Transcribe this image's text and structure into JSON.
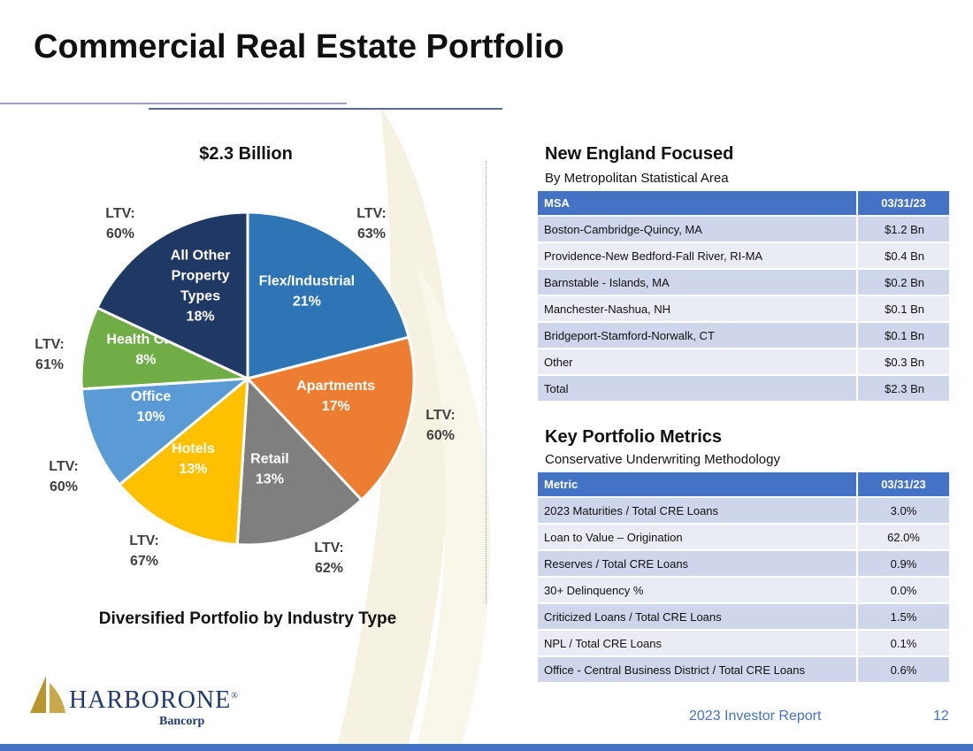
{
  "title": "Commercial Real Estate Portfolio",
  "chart_data": {
    "type": "pie",
    "title": "$2.3 Billion",
    "caption": "Diversified Portfolio by Industry Type",
    "slices": [
      {
        "label": [
          "Flex/Industrial"
        ],
        "pct_text": "21%",
        "value": 21,
        "ltv": "LTV:",
        "ltv_val": "63%",
        "color": "#2e75b6"
      },
      {
        "label": [
          "Apartments"
        ],
        "pct_text": "17%",
        "value": 17,
        "ltv": "LTV:",
        "ltv_val": "60%",
        "color": "#ed7d31"
      },
      {
        "label": [
          "Retail"
        ],
        "pct_text": "13%",
        "value": 13,
        "ltv": "LTV:",
        "ltv_val": "62%",
        "color": "#7f7f7f"
      },
      {
        "label": [
          "Hotels"
        ],
        "pct_text": "13%",
        "value": 13,
        "ltv": "LTV:",
        "ltv_val": "67%",
        "color": "#ffc000"
      },
      {
        "label": [
          "Office"
        ],
        "pct_text": "10%",
        "value": 10,
        "ltv": "LTV:",
        "ltv_val": "60%",
        "color": "#5b9bd5"
      },
      {
        "label": [
          "Health Care"
        ],
        "pct_text": "8%",
        "value": 8,
        "ltv": "LTV:",
        "ltv_val": "61%",
        "color": "#70ad47"
      },
      {
        "label": [
          "All Other",
          "Property",
          "Types"
        ],
        "pct_text": "18%",
        "value": 18,
        "ltv": "LTV:",
        "ltv_val": "60%",
        "color": "#203864"
      }
    ]
  },
  "msa": {
    "title": "New England Focused",
    "subtitle": "By Metropolitan Statistical Area",
    "headers": [
      "MSA",
      "03/31/23"
    ],
    "rows": [
      [
        "Boston-Cambridge-Quincy, MA",
        "$1.2 Bn"
      ],
      [
        "Providence-New Bedford-Fall River, RI-MA",
        "$0.4 Bn"
      ],
      [
        "Barnstable - Islands, MA",
        "$0.2 Bn"
      ],
      [
        "Manchester-Nashua, NH",
        "$0.1 Bn"
      ],
      [
        "Bridgeport-Stamford-Norwalk, CT",
        "$0.1 Bn"
      ],
      [
        "Other",
        "$0.3 Bn"
      ],
      [
        "Total",
        "$2.3 Bn"
      ]
    ]
  },
  "metrics": {
    "title": "Key Portfolio Metrics",
    "subtitle": "Conservative Underwriting Methodology",
    "headers": [
      "Metric",
      "03/31/23"
    ],
    "rows": [
      [
        "2023 Maturities / Total CRE Loans",
        "3.0%"
      ],
      [
        "Loan to Value – Origination",
        "62.0%"
      ],
      [
        "Reserves / Total CRE Loans",
        "0.9%"
      ],
      [
        "30+ Delinquency %",
        "0.0%"
      ],
      [
        "Criticized Loans / Total CRE Loans",
        "1.5%"
      ],
      [
        "NPL / Total CRE Loans",
        "0.1%"
      ],
      [
        "Office - Central Business District / Total CRE Loans",
        "0.6%"
      ]
    ]
  },
  "logo": {
    "name": "HARBORONE",
    "reg": "®",
    "sub": "Bancorp"
  },
  "footer": {
    "report": "2023 Investor Report",
    "page": "12"
  },
  "colors": {
    "accent": "#4472c4",
    "row_odd": "#cfd5ea",
    "row_even": "#e9ebf5"
  }
}
